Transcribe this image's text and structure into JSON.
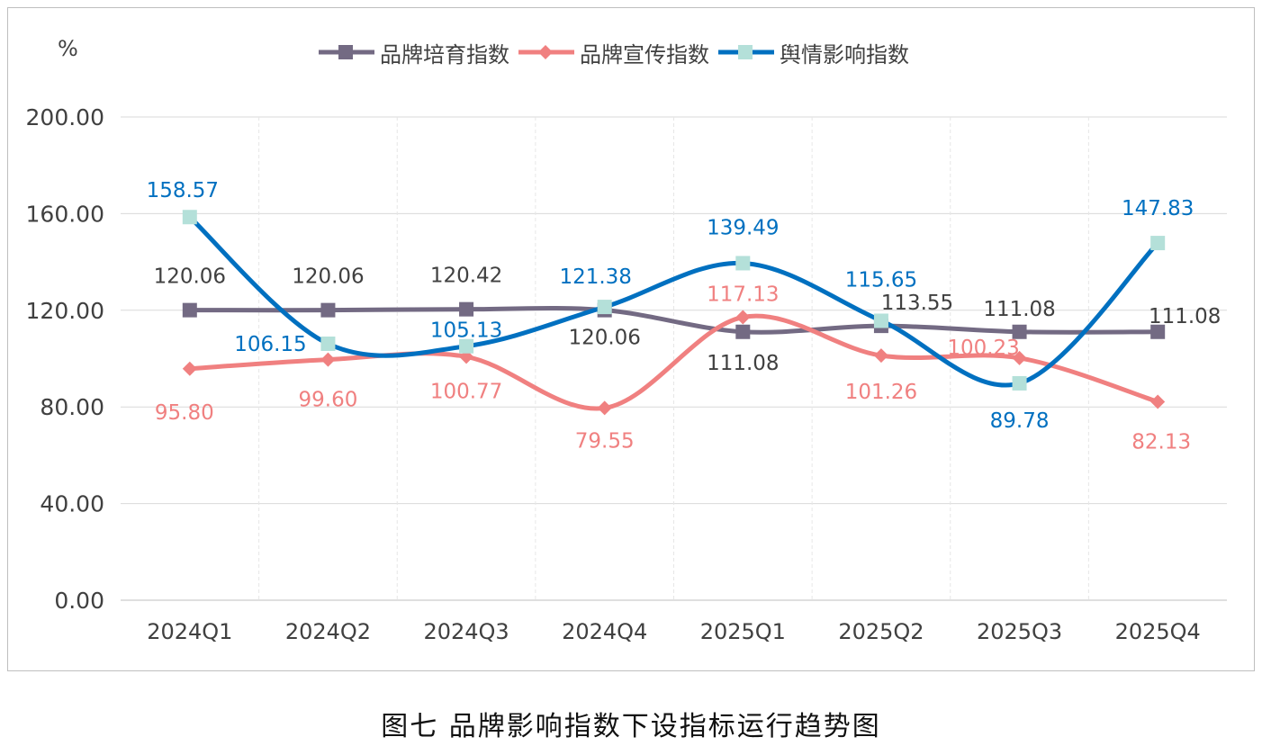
{
  "caption": "图七  品牌影响指数下设指标运行趋势图",
  "chart_data": {
    "type": "line",
    "title": "",
    "ylabel": "%",
    "xlabel": "",
    "categories": [
      "2024Q1",
      "2024Q2",
      "2024Q3",
      "2024Q4",
      "2025Q1",
      "2025Q2",
      "2025Q3",
      "2025Q4"
    ],
    "ylim": [
      0,
      200
    ],
    "yticks": [
      "0.00",
      "40.00",
      "80.00",
      "120.00",
      "160.00",
      "200.00"
    ],
    "grid": true,
    "legend_position": "top",
    "series": [
      {
        "name": "品牌培育指数",
        "color": "#736a83",
        "marker": "square",
        "values": [
          120.06,
          120.06,
          120.42,
          120.06,
          111.08,
          113.55,
          111.08,
          111.08
        ],
        "labels": [
          "120.06",
          "120.06",
          "120.42",
          "120.06",
          "111.08",
          "113.55",
          "111.08",
          "111.08"
        ]
      },
      {
        "name": "品牌宣传指数",
        "color": "#f08080",
        "marker": "diamond",
        "values": [
          95.8,
          99.6,
          100.77,
          79.55,
          117.13,
          101.26,
          100.23,
          82.13
        ],
        "labels": [
          "95.80",
          "99.60",
          "100.77",
          "79.55",
          "117.13",
          "101.26",
          "100.23",
          "82.13"
        ]
      },
      {
        "name": "舆情影响指数",
        "color": "#0070c0",
        "marker_color": "#b4e0d9",
        "marker": "square",
        "values": [
          158.57,
          106.15,
          105.13,
          121.38,
          139.49,
          115.65,
          89.78,
          147.83
        ],
        "labels": [
          "158.57",
          "106.15",
          "105.13",
          "121.38",
          "139.49",
          "115.65",
          "89.78",
          "147.83"
        ]
      }
    ]
  }
}
